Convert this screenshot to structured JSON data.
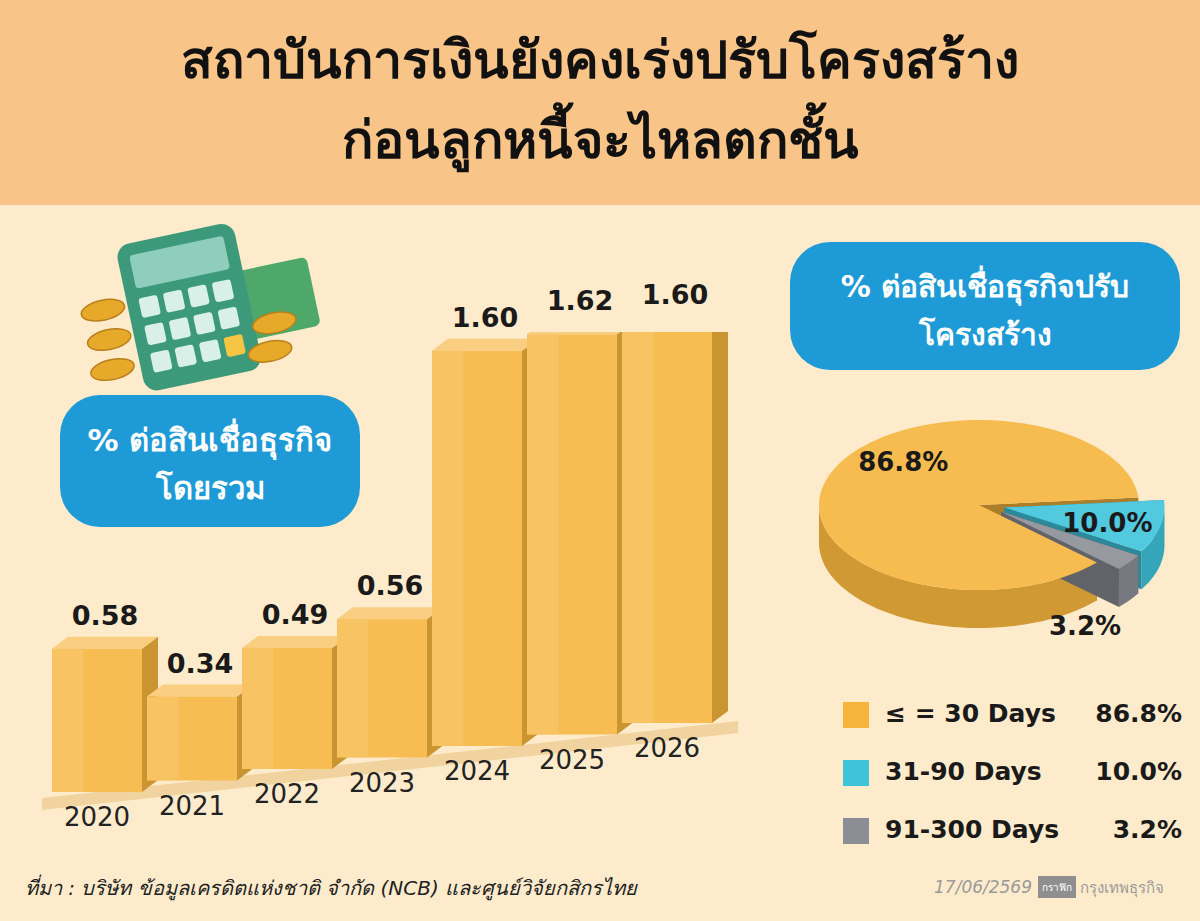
{
  "header": {
    "title_lines": [
      "สถาบันการเงินยังคงเร่งปรับโครงสร้าง",
      "ก่อนลูกหนี้จะไหลตกชั้น"
    ]
  },
  "chart_data": [
    {
      "type": "bar",
      "title": [
        "% ต่อสินเชื่อธุรกิจ",
        "โดยรวม"
      ],
      "categories": [
        "2020",
        "2021",
        "2022",
        "2023",
        "2024",
        "2025",
        "2026"
      ],
      "values": [
        0.58,
        0.34,
        0.49,
        0.56,
        1.6,
        1.62,
        1.6
      ],
      "value_labels": [
        "0.58",
        "0.34",
        "0.49",
        "0.56",
        "1.60",
        "1.62",
        "1.60"
      ],
      "color": "#f6b43c",
      "ylim": [
        0,
        1.7
      ],
      "data_labels": true,
      "tick_labels": "x"
    },
    {
      "type": "pie",
      "title": [
        "% ต่อสินเชื่อธุรกิจปรับ",
        "โครงสร้าง"
      ],
      "categories": [
        "≤ = 30 Days",
        "31-90 Days",
        "91-300 Days"
      ],
      "values": [
        86.8,
        10.0,
        3.2
      ],
      "value_labels": [
        "86.8%",
        "10.0%",
        "3.2%"
      ],
      "colors": [
        "#f6b43c",
        "#3ec3da",
        "#8b8e95"
      ],
      "data_labels": true,
      "legend": "bottom-right"
    }
  ],
  "footer": {
    "source": "ที่มา : บริษัท ข้อมูลเครดิตแห่งชาติ จำกัด (NCB) และศูนย์วิจัยกสิกรไทย",
    "date": "17/06/2569",
    "credit": "กราฟิก",
    "brand": "กรุงเทพธุรกิจ"
  }
}
